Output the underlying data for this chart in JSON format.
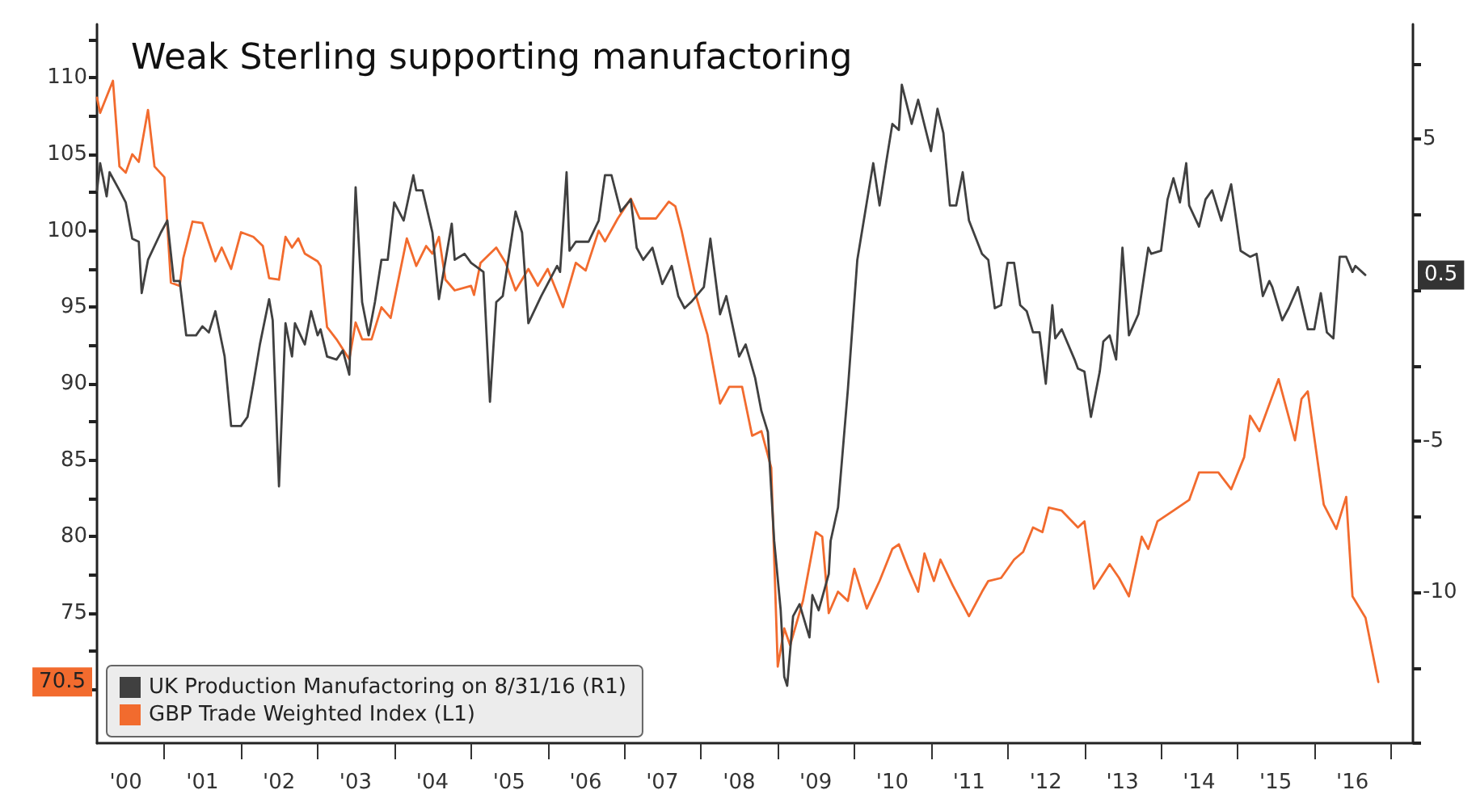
{
  "chart_data": {
    "type": "line",
    "title": "Weak Sterling supporting manufactoring",
    "legend": "bottom left",
    "marker": "none",
    "line_style": "solid",
    "xlim": [
      "2000-02-15",
      "2017-04-15"
    ],
    "xticks": [
      {
        "value": "2000-07-01",
        "label": "'00"
      },
      {
        "value": "2001",
        "label": null
      },
      {
        "value": "2001-07-01",
        "label": "'01"
      },
      {
        "value": "2002",
        "label": null
      },
      {
        "value": "2002-07-01",
        "label": "'02"
      },
      {
        "value": "2003",
        "label": null
      },
      {
        "value": "2003-07-01",
        "label": "'03"
      },
      {
        "value": "2004",
        "label": null
      },
      {
        "value": "2004-07-01",
        "label": "'04"
      },
      {
        "value": "2005",
        "label": null
      },
      {
        "value": "2005-07-01",
        "label": "'05"
      },
      {
        "value": "2006",
        "label": null
      },
      {
        "value": "2006-07-01",
        "label": "'06"
      },
      {
        "value": "2007",
        "label": null
      },
      {
        "value": "2007-07-01",
        "label": "'07"
      },
      {
        "value": "2008",
        "label": null
      },
      {
        "value": "2008-07-01",
        "label": "'08"
      },
      {
        "value": "2009",
        "label": null
      },
      {
        "value": "2009-07-01",
        "label": "'09"
      },
      {
        "value": "2010",
        "label": null
      },
      {
        "value": "2010-07-01",
        "label": "'10"
      },
      {
        "value": "2011",
        "label": null
      },
      {
        "value": "2011-07-01",
        "label": "'11"
      },
      {
        "value": "2012",
        "label": null
      },
      {
        "value": "2012-07-01",
        "label": "'12"
      },
      {
        "value": "2013",
        "label": null
      },
      {
        "value": "2013-07-01",
        "label": "'13"
      },
      {
        "value": "2014",
        "label": null
      },
      {
        "value": "2014-07-01",
        "label": "'14"
      },
      {
        "value": "2015",
        "label": null
      },
      {
        "value": "2015-07-01",
        "label": "'15"
      },
      {
        "value": "2016",
        "label": null
      },
      {
        "value": "2016-07-01",
        "label": "'16"
      },
      {
        "value": "2017",
        "label": null
      }
    ],
    "ylim": [
      66.5,
      113.5
    ],
    "yticks": [
      {
        "value": 70,
        "label": null
      },
      {
        "value": 72.5,
        "label": null
      },
      75,
      {
        "value": 77.5,
        "label": null
      },
      80,
      {
        "value": 82.5,
        "label": null
      },
      85,
      {
        "value": 87.5,
        "label": null
      },
      90,
      {
        "value": 92.5,
        "label": null
      },
      95,
      {
        "value": 97.5,
        "label": null
      },
      100,
      {
        "value": 102.5,
        "label": null
      },
      105,
      {
        "value": 107.5,
        "label": null
      },
      110,
      {
        "value": 112.5,
        "label": null
      }
    ],
    "y2lim": [
      -15,
      8.8
    ],
    "y2ticks": [
      {
        "value": -15,
        "label": null
      },
      {
        "value": -12.5,
        "label": null
      },
      -10,
      {
        "value": -7.5,
        "label": null
      },
      -5,
      {
        "value": -2.5,
        "label": null
      },
      {
        "value": 0,
        "label": null
      },
      {
        "value": 2.5,
        "label": null
      },
      5,
      {
        "value": 7.5,
        "label": null
      }
    ],
    "annotations": [
      "70.5",
      "0.5"
    ],
    "series": [
      {
        "name": "GBP Trade Weighted Index (L1)",
        "color": "#f26b2e",
        "x": [
          "2000-02-15",
          "2000-03-01",
          "2000-05-01",
          "2000-06-01",
          "2000-07-01",
          "2000-08-01",
          "2000-09-01",
          "2000-10-15",
          "2000-11-15",
          "2001-01-01",
          "2001-02-01",
          "2001-03-15",
          "2001-04-01",
          "2001-05-15",
          "2001-07-01",
          "2001-09-01",
          "2001-10-01",
          "2001-11-15",
          "2002-01-01",
          "2002-03-01",
          "2002-04-15",
          "2002-05-15",
          "2002-07-01",
          "2002-08-01",
          "2002-09-01",
          "2002-10-01",
          "2002-11-01",
          "2003-01-01",
          "2003-01-15",
          "2003-02-15",
          "2003-04-01",
          "2003-06-01",
          "2003-07-01",
          "2003-08-01",
          "2003-09-15",
          "2003-11-01",
          "2003-12-15",
          "2004-03-01",
          "2004-04-15",
          "2004-06-01",
          "2004-07-01",
          "2004-08-01",
          "2004-09-01",
          "2004-10-15",
          "2005-01-01",
          "2005-01-15",
          "2005-02-15",
          "2005-05-01",
          "2005-06-15",
          "2005-08-01",
          "2005-10-01",
          "2005-11-15",
          "2006-01-01",
          "2006-03-15",
          "2006-05-15",
          "2006-07-01",
          "2006-09-01",
          "2006-10-01",
          "2006-12-01",
          "2007-02-01",
          "2007-03-15",
          "2007-06-01",
          "2007-08-01",
          "2007-09-01",
          "2007-10-01",
          "2007-12-01",
          "2008-02-01",
          "2008-04-01",
          "2008-05-15",
          "2008-07-15",
          "2008-09-01",
          "2008-10-15",
          "2008-12-01",
          "2009-01-01",
          "2009-02-01",
          "2009-03-01",
          "2009-05-01",
          "2009-07-01",
          "2009-08-01",
          "2009-09-01",
          "2009-10-15",
          "2009-12-01",
          "2010-01-01",
          "2010-03-01",
          "2010-05-01",
          "2010-07-01",
          "2010-08-01",
          "2010-09-15",
          "2010-11-01",
          "2010-12-01",
          "2011-01-15",
          "2011-02-15",
          "2011-04-15",
          "2011-07-01",
          "2011-09-01",
          "2011-10-01",
          "2011-12-01",
          "2012-02-01",
          "2012-03-15",
          "2012-05-01",
          "2012-06-15",
          "2012-07-15",
          "2012-09-15",
          "2012-12-01",
          "2013-01-01",
          "2013-02-15",
          "2013-05-01",
          "2013-06-15",
          "2013-08-01",
          "2013-10-01",
          "2013-11-01",
          "2013-12-15",
          "2014-03-01",
          "2014-05-15",
          "2014-07-01",
          "2014-10-01",
          "2014-12-01",
          "2015-02-01",
          "2015-03-01",
          "2015-04-15",
          "2015-07-15",
          "2015-10-01",
          "2015-11-01",
          "2015-12-01",
          "2016-02-15",
          "2016-04-15",
          "2016-06-01",
          "2016-07-01",
          "2016-09-01",
          "2016-11-01"
        ],
        "values": [
          108.7,
          107.7,
          109.8,
          104.2,
          103.8,
          105.0,
          104.5,
          107.9,
          104.2,
          103.5,
          96.6,
          96.4,
          98.2,
          100.6,
          100.5,
          98.0,
          98.9,
          97.5,
          99.9,
          99.6,
          99.0,
          96.9,
          96.8,
          99.6,
          98.9,
          99.5,
          98.5,
          98.0,
          97.7,
          93.7,
          92.9,
          91.6,
          94.0,
          92.9,
          92.9,
          95.0,
          94.3,
          99.5,
          97.7,
          99.0,
          98.5,
          99.6,
          96.8,
          96.1,
          96.4,
          95.8,
          97.9,
          98.9,
          97.9,
          96.1,
          97.5,
          96.4,
          97.5,
          95.0,
          97.9,
          97.4,
          100.0,
          99.3,
          100.8,
          102.1,
          100.8,
          100.8,
          101.9,
          101.6,
          100.0,
          96.1,
          93.2,
          88.7,
          89.8,
          89.8,
          86.6,
          86.9,
          84.5,
          71.5,
          74.0,
          72.9,
          75.8,
          80.3,
          80.0,
          75.0,
          76.4,
          75.8,
          77.9,
          75.3,
          77.1,
          79.2,
          79.5,
          77.9,
          76.4,
          78.9,
          77.1,
          78.5,
          76.8,
          74.8,
          76.4,
          77.1,
          77.3,
          78.5,
          79.0,
          80.6,
          80.3,
          81.9,
          81.7,
          80.6,
          81.0,
          76.6,
          78.2,
          77.3,
          76.1,
          80.0,
          79.2,
          81.0,
          81.7,
          82.4,
          84.2,
          84.2,
          83.1,
          85.2,
          87.9,
          86.9,
          90.3,
          86.3,
          89.0,
          89.5,
          82.1,
          80.5,
          82.6,
          76.1,
          74.7,
          70.5
        ]
      },
      {
        "name": "UK Production Manufactoring on 8/31/16 (R1)",
        "color": "#404040",
        "axis": "y2",
        "x": [
          "2000-02-15",
          "2000-03-01",
          "2000-04-01",
          "2000-04-15",
          "2000-06-01",
          "2000-07-01",
          "2000-08-01",
          "2000-09-01",
          "2000-09-15",
          "2000-10-15",
          "2000-12-15",
          "2001-01-15",
          "2001-02-15",
          "2001-03-15",
          "2001-04-15",
          "2001-06-01",
          "2001-07-01",
          "2001-08-01",
          "2001-09-01",
          "2001-10-15",
          "2001-11-15",
          "2002-01-01",
          "2002-02-01",
          "2002-03-01",
          "2002-04-01",
          "2002-05-15",
          "2002-06-01",
          "2002-07-01",
          "2002-08-01",
          "2002-09-01",
          "2002-09-15",
          "2002-11-01",
          "2002-12-01",
          "2003-01-01",
          "2003-01-15",
          "2003-02-15",
          "2003-04-01",
          "2003-05-01",
          "2003-06-01",
          "2003-07-01",
          "2003-08-01",
          "2003-09-01",
          "2003-10-01",
          "2003-11-01",
          "2003-12-01",
          "2004-01-01",
          "2004-02-15",
          "2004-04-01",
          "2004-04-15",
          "2004-05-15",
          "2004-07-01",
          "2004-08-01",
          "2004-10-01",
          "2004-10-15",
          "2004-12-01",
          "2005-01-01",
          "2005-03-01",
          "2005-04-01",
          "2005-05-01",
          "2005-06-01",
          "2005-08-01",
          "2005-09-01",
          "2005-10-01",
          "2005-12-01",
          "2006-02-15",
          "2006-03-01",
          "2006-04-01",
          "2006-04-15",
          "2006-05-15",
          "2006-07-15",
          "2006-09-01",
          "2006-10-01",
          "2006-11-01",
          "2006-12-15",
          "2007-02-01",
          "2007-03-01",
          "2007-04-01",
          "2007-05-15",
          "2007-07-01",
          "2007-08-15",
          "2007-09-15",
          "2007-10-15",
          "2007-11-15",
          "2008-01-15",
          "2008-02-15",
          "2008-04-01",
          "2008-05-01",
          "2008-07-01",
          "2008-08-01",
          "2008-09-15",
          "2008-10-15",
          "2008-11-15",
          "2008-12-15",
          "2009-01-15",
          "2009-02-01",
          "2009-02-15",
          "2009-03-15",
          "2009-04-15",
          "2009-06-01",
          "2009-06-15",
          "2009-07-15",
          "2009-09-01",
          "2009-09-10",
          "2009-10-15",
          "2009-12-01",
          "2010-01-15",
          "2010-03-01",
          "2010-04-01",
          "2010-05-01",
          "2010-06-01",
          "2010-07-01",
          "2010-08-01",
          "2010-08-15",
          "2010-10-01",
          "2010-11-01",
          "2011-01-01",
          "2011-02-01",
          "2011-03-01",
          "2011-04-01",
          "2011-05-01",
          "2011-06-01",
          "2011-07-01",
          "2011-09-01",
          "2011-10-01",
          "2011-11-01",
          "2011-12-01",
          "2012-01-01",
          "2012-02-01",
          "2012-03-01",
          "2012-04-01",
          "2012-05-01",
          "2012-06-01",
          "2012-07-01",
          "2012-08-01",
          "2012-08-15",
          "2012-09-15",
          "2012-11-15",
          "2012-12-01",
          "2013-01-01",
          "2013-02-01",
          "2013-03-15",
          "2013-04-01",
          "2013-05-01",
          "2013-06-01",
          "2013-07-01",
          "2013-08-01",
          "2013-09-15",
          "2013-11-01",
          "2013-11-15",
          "2014-01-01",
          "2014-02-01",
          "2014-03-01",
          "2014-04-01",
          "2014-05-01",
          "2014-05-15",
          "2014-07-01",
          "2014-08-01",
          "2014-09-01",
          "2014-10-15",
          "2014-12-01",
          "2015-01-15",
          "2015-03-01",
          "2015-04-01",
          "2015-05-01",
          "2015-06-01",
          "2015-06-15",
          "2015-08-01",
          "2015-09-01",
          "2015-10-15",
          "2015-12-01",
          "2016-01-01",
          "2016-02-01",
          "2016-03-01",
          "2016-04-01",
          "2016-05-01",
          "2016-06-01",
          "2016-07-01",
          "2016-07-15",
          "2016-08-31"
        ],
        "values": [
          3.3,
          4.2,
          3.1,
          3.9,
          3.3,
          2.9,
          1.7,
          1.6,
          -0.1,
          1.0,
          1.9,
          2.3,
          0.3,
          0.3,
          -1.5,
          -1.5,
          -1.2,
          -1.4,
          -0.7,
          -2.2,
          -4.5,
          -4.5,
          -4.2,
          -3.1,
          -1.8,
          -0.3,
          -1.0,
          -6.5,
          -1.1,
          -2.2,
          -1.1,
          -1.8,
          -0.7,
          -1.5,
          -1.3,
          -2.2,
          -2.3,
          -2.0,
          -2.8,
          3.4,
          -0.4,
          -1.5,
          -0.4,
          1.0,
          1.0,
          2.9,
          2.3,
          3.8,
          3.3,
          3.3,
          1.9,
          -0.3,
          2.2,
          1.0,
          1.2,
          0.9,
          0.6,
          -3.7,
          -0.4,
          -0.2,
          2.6,
          1.9,
          -1.1,
          -0.2,
          0.8,
          0.6,
          3.9,
          1.3,
          1.6,
          1.6,
          2.3,
          3.8,
          3.8,
          2.6,
          3.0,
          1.4,
          1.0,
          1.4,
          0.2,
          0.8,
          -0.2,
          -0.6,
          -0.4,
          0.1,
          1.7,
          -0.8,
          -0.2,
          -2.2,
          -1.8,
          -2.9,
          -4.0,
          -4.7,
          -8.3,
          -10.6,
          -12.8,
          -13.1,
          -10.8,
          -10.4,
          -11.5,
          -10.1,
          -10.6,
          -9.4,
          -8.3,
          -7.2,
          -3.3,
          1.0,
          2.9,
          4.2,
          2.8,
          4.2,
          5.5,
          5.3,
          6.8,
          5.5,
          6.3,
          4.6,
          6.0,
          5.2,
          2.8,
          2.8,
          3.9,
          2.3,
          1.2,
          1.0,
          -0.6,
          -0.5,
          0.9,
          0.9,
          -0.5,
          -0.7,
          -1.4,
          -1.4,
          -3.1,
          -0.5,
          -1.6,
          -1.3,
          -2.3,
          -2.6,
          -2.7,
          -4.2,
          -2.7,
          -1.7,
          -1.5,
          -2.3,
          1.4,
          -1.5,
          -0.8,
          1.4,
          1.2,
          1.3,
          3.0,
          3.7,
          2.9,
          4.2,
          2.8,
          2.1,
          3.0,
          3.3,
          2.3,
          3.5,
          1.3,
          1.1,
          1.2,
          -0.2,
          0.3,
          0.1,
          -1.0,
          -0.6,
          0.1,
          -1.3,
          -1.3,
          -0.1,
          -1.4,
          -1.6,
          1.1,
          1.1,
          0.6,
          0.8,
          0.5
        ]
      }
    ]
  }
}
